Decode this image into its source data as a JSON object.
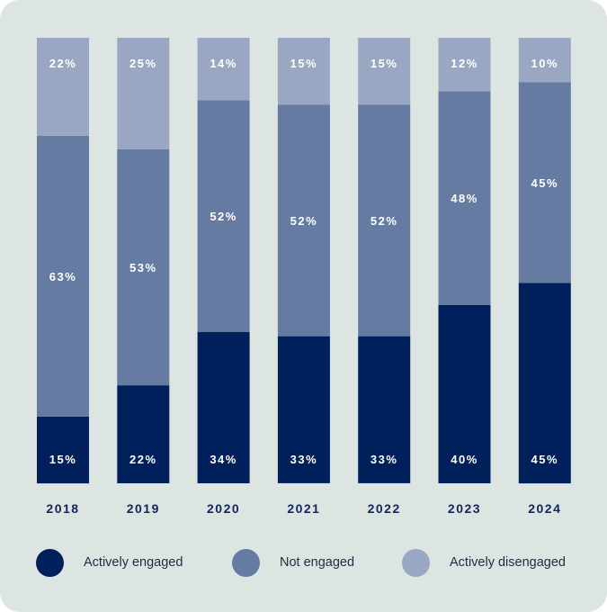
{
  "chart_data": {
    "type": "bar",
    "stacked": true,
    "categories": [
      "2018",
      "2019",
      "2020",
      "2021",
      "2022",
      "2023",
      "2024"
    ],
    "series": [
      {
        "name": "Actively engaged",
        "color": "#00205b",
        "values": [
          15,
          22,
          34,
          33,
          33,
          40,
          45
        ]
      },
      {
        "name": "Not engaged",
        "color": "#667ba2",
        "values": [
          63,
          53,
          52,
          52,
          52,
          48,
          45
        ]
      },
      {
        "name": "Actively disengaged",
        "color": "#99a7c2",
        "values": [
          22,
          25,
          14,
          15,
          15,
          12,
          10
        ]
      }
    ],
    "value_suffix": "%",
    "ylim": [
      0,
      100
    ],
    "title": "",
    "xlabel": "",
    "ylabel": "",
    "legend_position": "bottom",
    "grid": false
  },
  "colors": {
    "background": "#dde5e3",
    "axis_text": "#13265e",
    "segment_text": "#ffffff"
  }
}
